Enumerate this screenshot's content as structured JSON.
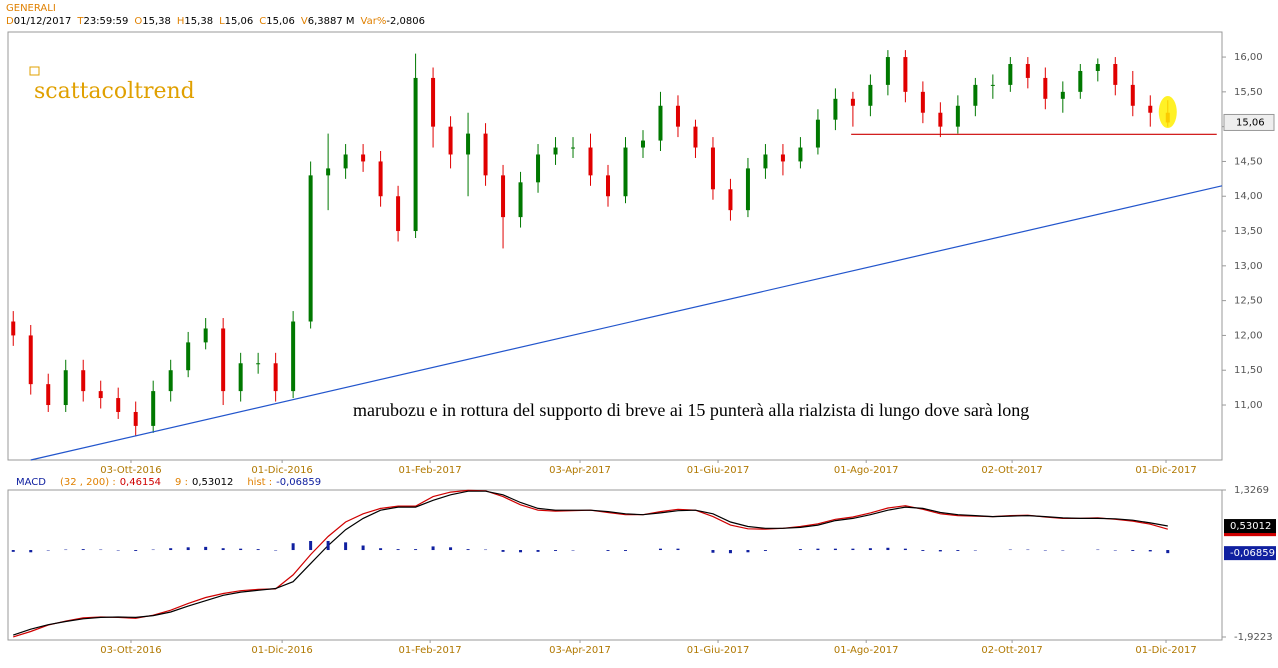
{
  "chart_data": [
    {
      "type": "candlestick",
      "title": "GENERALI",
      "info": [
        {
          "key": "D",
          "value": "01/12/2017"
        },
        {
          "key": "T",
          "value": "23:59:59"
        },
        {
          "key": "O",
          "value": "15,38"
        },
        {
          "key": "H",
          "value": "15,38"
        },
        {
          "key": "L",
          "value": "15,06"
        },
        {
          "key": "C",
          "value": "15,06"
        },
        {
          "key": "V",
          "value": "6,3887 M"
        },
        {
          "key": "Var%",
          "value": "-2,0806"
        }
      ],
      "watermark": "scattacoltrend",
      "annotation": "marubozu e in rottura del supporto di breve ai 15 punterà alla rialzista di lungo dove sarà long",
      "x": [
        0,
        1,
        2,
        3,
        4,
        5,
        6,
        7,
        8,
        9,
        10,
        11,
        12,
        13,
        14,
        15,
        16,
        17,
        18,
        19,
        20,
        21,
        22,
        23,
        24,
        25,
        26,
        27,
        28,
        29,
        30,
        31,
        32,
        33,
        34,
        35,
        36,
        37,
        38,
        39,
        40,
        41,
        42,
        43,
        44,
        45,
        46,
        47,
        48,
        49,
        50,
        51,
        52,
        53,
        54,
        55,
        56,
        57,
        58,
        59,
        60,
        61,
        62,
        63,
        64,
        65,
        66
      ],
      "open": [
        12.2,
        12.0,
        11.3,
        11.0,
        11.5,
        11.2,
        11.1,
        10.9,
        10.7,
        11.2,
        11.5,
        11.9,
        12.1,
        11.2,
        11.6,
        11.6,
        11.2,
        12.2,
        14.3,
        14.4,
        14.6,
        14.5,
        14.0,
        13.5,
        15.7,
        15.0,
        14.6,
        14.9,
        14.3,
        13.7,
        14.2,
        14.6,
        14.7,
        14.7,
        14.3,
        14.0,
        14.7,
        14.8,
        15.3,
        15.0,
        14.7,
        14.1,
        13.8,
        14.4,
        14.6,
        14.5,
        14.7,
        15.1,
        15.4,
        15.3,
        15.6,
        16.0,
        15.5,
        15.2,
        15.0,
        15.3,
        15.6,
        15.6,
        15.9,
        15.7,
        15.4,
        15.5,
        15.8,
        15.9,
        15.6,
        15.3,
        15.2
      ],
      "high": [
        12.35,
        12.15,
        11.45,
        11.65,
        11.65,
        11.35,
        11.25,
        11.05,
        11.35,
        11.65,
        12.05,
        12.25,
        12.25,
        11.75,
        11.75,
        11.75,
        12.35,
        14.5,
        14.9,
        14.75,
        14.75,
        14.65,
        14.15,
        16.05,
        15.85,
        15.15,
        15.2,
        15.05,
        14.45,
        14.35,
        14.75,
        14.85,
        14.85,
        14.9,
        14.45,
        14.85,
        14.95,
        15.5,
        15.45,
        15.1,
        14.85,
        14.25,
        14.55,
        14.75,
        14.75,
        14.85,
        15.25,
        15.55,
        15.5,
        15.75,
        16.1,
        16.1,
        15.65,
        15.35,
        15.45,
        15.7,
        15.75,
        16.0,
        16.0,
        15.85,
        15.65,
        15.9,
        15.98,
        16.0,
        15.8,
        15.45,
        15.38
      ],
      "low": [
        11.85,
        11.15,
        10.9,
        10.9,
        11.05,
        10.95,
        10.8,
        10.55,
        10.6,
        11.05,
        11.4,
        11.8,
        11.0,
        11.05,
        11.45,
        11.05,
        11.1,
        12.1,
        13.8,
        14.25,
        14.35,
        13.85,
        13.35,
        13.4,
        14.7,
        14.4,
        14.0,
        14.15,
        13.25,
        13.55,
        14.05,
        14.45,
        14.55,
        14.15,
        13.85,
        13.9,
        14.55,
        14.65,
        14.85,
        14.55,
        13.95,
        13.65,
        13.7,
        14.25,
        14.3,
        14.4,
        14.6,
        14.95,
        15.0,
        15.15,
        15.45,
        15.35,
        15.05,
        14.85,
        14.9,
        15.15,
        15.4,
        15.5,
        15.55,
        15.25,
        15.2,
        15.4,
        15.65,
        15.45,
        15.15,
        15.0,
        15.0
      ],
      "close": [
        12.0,
        11.3,
        11.0,
        11.5,
        11.2,
        11.1,
        10.9,
        10.7,
        11.2,
        11.5,
        11.9,
        12.1,
        11.2,
        11.6,
        11.6,
        11.2,
        12.2,
        14.3,
        14.4,
        14.6,
        14.5,
        14.0,
        13.5,
        15.7,
        15.0,
        14.6,
        14.9,
        14.3,
        13.7,
        14.2,
        14.6,
        14.7,
        14.7,
        14.3,
        14.0,
        14.7,
        14.8,
        15.3,
        15.0,
        14.7,
        14.1,
        13.8,
        14.4,
        14.6,
        14.5,
        14.7,
        15.1,
        15.4,
        15.3,
        15.6,
        16.0,
        15.5,
        15.2,
        15.0,
        15.3,
        15.6,
        15.6,
        15.9,
        15.7,
        15.4,
        15.5,
        15.8,
        15.9,
        15.6,
        15.3,
        15.2,
        15.06
      ],
      "up_color": "#007800",
      "down_color": "#e00000",
      "xlim": [
        -0.3,
        69.1
      ],
      "ylim": [
        10.21,
        16.36
      ],
      "xticks": [
        {
          "value": 6.73,
          "label": "03-Ott-2016"
        },
        {
          "value": 15.37,
          "label": "01-Dic-2016"
        },
        {
          "value": 23.83,
          "label": "01-Feb-2017"
        },
        {
          "value": 32.4,
          "label": "03-Apr-2017"
        },
        {
          "value": 40.29,
          "label": "01-Giu-2017"
        },
        {
          "value": 48.76,
          "label": "01-Ago-2017"
        },
        {
          "value": 57.1,
          "label": "02-Ott-2017"
        },
        {
          "value": 65.9,
          "label": "01-Dic-2017"
        }
      ],
      "yticks": [
        {
          "value": 11,
          "label": "11,00"
        },
        {
          "value": 11.5,
          "label": "11,50"
        },
        {
          "value": 12,
          "label": "12,00"
        },
        {
          "value": 12.5,
          "label": "12,50"
        },
        {
          "value": 13,
          "label": "13,00"
        },
        {
          "value": 13.5,
          "label": "13,50"
        },
        {
          "value": 14,
          "label": "14,00"
        },
        {
          "value": 14.5,
          "label": "14,50"
        },
        {
          "value": 15,
          "label": "15,00"
        },
        {
          "value": 15.5,
          "label": "15,50"
        },
        {
          "value": 16,
          "label": "16,00"
        }
      ],
      "last_price": {
        "value": 15.06,
        "label": "15,06"
      },
      "trendlines": [
        {
          "x": [
            1.0,
            69.1
          ],
          "y": [
            10.21,
            14.15
          ],
          "color": "#2255cc"
        },
        {
          "x": [
            47.9,
            68.8
          ],
          "y": [
            14.89,
            14.89
          ],
          "color": "#cc0000"
        }
      ],
      "highlight": {
        "x": 66,
        "y": 15.21,
        "color": "#ffee00"
      }
    },
    {
      "type": "line",
      "title": "MACD",
      "params": "(32 , 200) :",
      "signal_text": "9 :",
      "hist_text": "hist :",
      "series": [
        {
          "name": "0,46154",
          "color": "#d00000",
          "value": 0.46154,
          "values": [
            -1.92,
            -1.8,
            -1.66,
            -1.57,
            -1.5,
            -1.48,
            -1.49,
            -1.51,
            -1.44,
            -1.33,
            -1.18,
            -1.05,
            -0.96,
            -0.9,
            -0.87,
            -0.86,
            -0.55,
            -0.1,
            0.3,
            0.62,
            0.8,
            0.92,
            0.97,
            0.97,
            1.18,
            1.28,
            1.32,
            1.31,
            1.18,
            1.0,
            0.88,
            0.86,
            0.87,
            0.88,
            0.83,
            0.78,
            0.78,
            0.85,
            0.9,
            0.88,
            0.74,
            0.55,
            0.47,
            0.46,
            0.48,
            0.52,
            0.58,
            0.68,
            0.73,
            0.82,
            0.93,
            0.98,
            0.9,
            0.8,
            0.76,
            0.75,
            0.74,
            0.76,
            0.77,
            0.73,
            0.7,
            0.7,
            0.71,
            0.68,
            0.64,
            0.57,
            0.46154
          ]
        },
        {
          "name": "0,53012",
          "color": "#000000",
          "value": 0.53012,
          "values": [
            -1.88,
            -1.75,
            -1.65,
            -1.58,
            -1.52,
            -1.49,
            -1.48,
            -1.49,
            -1.45,
            -1.37,
            -1.24,
            -1.12,
            -1.0,
            -0.93,
            -0.89,
            -0.85,
            -0.7,
            -0.3,
            0.1,
            0.45,
            0.7,
            0.88,
            0.95,
            0.95,
            1.1,
            1.22,
            1.3,
            1.3,
            1.22,
            1.05,
            0.92,
            0.88,
            0.88,
            0.88,
            0.85,
            0.8,
            0.78,
            0.82,
            0.87,
            0.88,
            0.8,
            0.62,
            0.52,
            0.48,
            0.48,
            0.5,
            0.55,
            0.65,
            0.7,
            0.78,
            0.88,
            0.95,
            0.92,
            0.83,
            0.78,
            0.76,
            0.74,
            0.75,
            0.76,
            0.74,
            0.71,
            0.7,
            0.7,
            0.69,
            0.66,
            0.6,
            0.53012
          ]
        },
        {
          "name": "-0,06859",
          "color": "#1020a0",
          "value": -0.06859,
          "type": "bar",
          "values": [
            -0.04,
            -0.05,
            -0.01,
            0.01,
            0.02,
            0.01,
            -0.01,
            -0.02,
            0.01,
            0.04,
            0.06,
            0.07,
            0.04,
            0.03,
            0.02,
            -0.01,
            0.15,
            0.2,
            0.2,
            0.17,
            0.1,
            0.04,
            0.02,
            0.02,
            0.08,
            0.06,
            0.02,
            0.01,
            -0.04,
            -0.05,
            -0.04,
            -0.02,
            -0.01,
            0.0,
            -0.02,
            -0.02,
            0.0,
            0.03,
            0.03,
            0.0,
            -0.06,
            -0.07,
            -0.05,
            -0.02,
            0.0,
            0.02,
            0.03,
            0.03,
            0.03,
            0.04,
            0.05,
            0.03,
            -0.02,
            -0.03,
            -0.02,
            -0.01,
            0.0,
            0.01,
            0.01,
            -0.01,
            -0.01,
            0.0,
            0.01,
            -0.01,
            -0.02,
            -0.03,
            -0.06859
          ]
        }
      ],
      "ylim": [
        -1.9223,
        1.3269
      ],
      "yticks": [
        {
          "value": 1.3269,
          "label": "1,3269"
        },
        {
          "value": -1.9223,
          "label": "-1,9223"
        }
      ]
    }
  ]
}
